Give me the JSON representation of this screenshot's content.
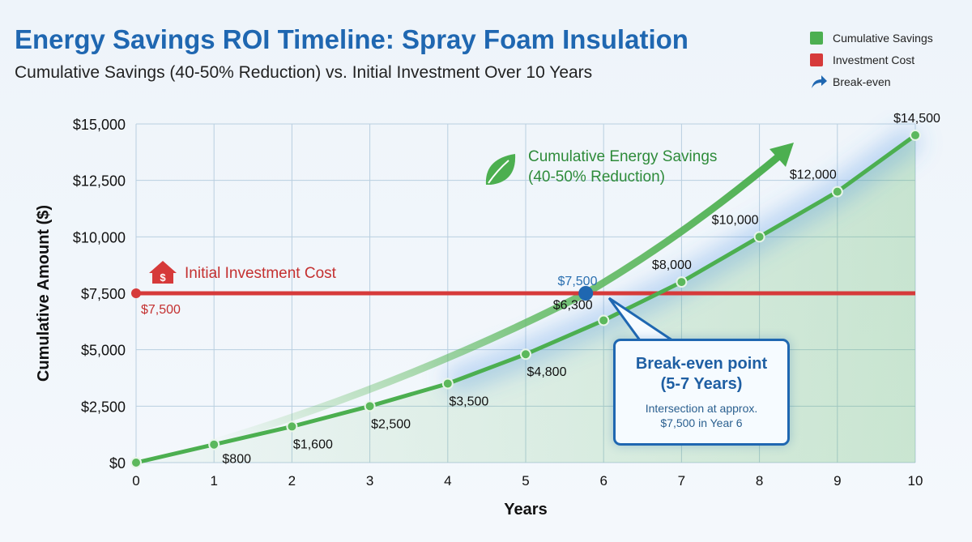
{
  "title": "Energy Savings ROI Timeline: Spray Foam Insulation",
  "subtitle": "Cumulative Savings (40-50% Reduction) vs. Initial Investment Over 10 Years",
  "legend": [
    {
      "label": "Cumulative Savings",
      "color": "#4caf50"
    },
    {
      "label": "Investment Cost",
      "color": "#d63a3a"
    },
    {
      "label": "Break-even",
      "color": "#1f67b1",
      "icon": "curved-arrow-icon"
    }
  ],
  "chart_data": {
    "type": "line",
    "xlabel": "Years",
    "ylabel": "Cumulative Amount ($)",
    "x": [
      0,
      1,
      2,
      3,
      4,
      5,
      6,
      7,
      8,
      9,
      10
    ],
    "xlim": [
      0,
      10
    ],
    "ylim": [
      0,
      15000
    ],
    "y_ticks": [
      "$0",
      "$2,500",
      "$5,000",
      "$7,500",
      "$10,000",
      "$12,500",
      "$15,000"
    ],
    "grid": true,
    "legend_placement": "top-right",
    "series": [
      {
        "name": "Cumulative Savings",
        "color": "#4caf50",
        "values": [
          0,
          800,
          1600,
          2500,
          3500,
          4800,
          6300,
          8000,
          10000,
          12000,
          14500
        ],
        "labels": [
          "",
          "$800",
          "$1,600",
          "$2,500",
          "$3,500",
          "$4,800",
          "$6,300",
          "$8,000",
          "$10,000",
          "$12,000",
          "$14,500"
        ]
      },
      {
        "name": "Investment Cost",
        "color": "#d63a3a",
        "values": [
          7500,
          7500,
          7500,
          7500,
          7500,
          7500,
          7500,
          7500,
          7500,
          7500,
          7500
        ],
        "start_label": "$7,500"
      }
    ],
    "annotations": {
      "investment": "Initial Investment Cost",
      "savings_line1": "Cumulative Energy Savings",
      "savings_line2": "(40-50% Reduction)",
      "break_even_value": "$7,500",
      "break_even_x": 6,
      "break_even_y": 7500,
      "callout_title1": "Break-even point",
      "callout_title2": "(5-7 Years)",
      "callout_text1": "Intersection at approx.",
      "callout_text2": "$7,500 in Year 6"
    }
  }
}
